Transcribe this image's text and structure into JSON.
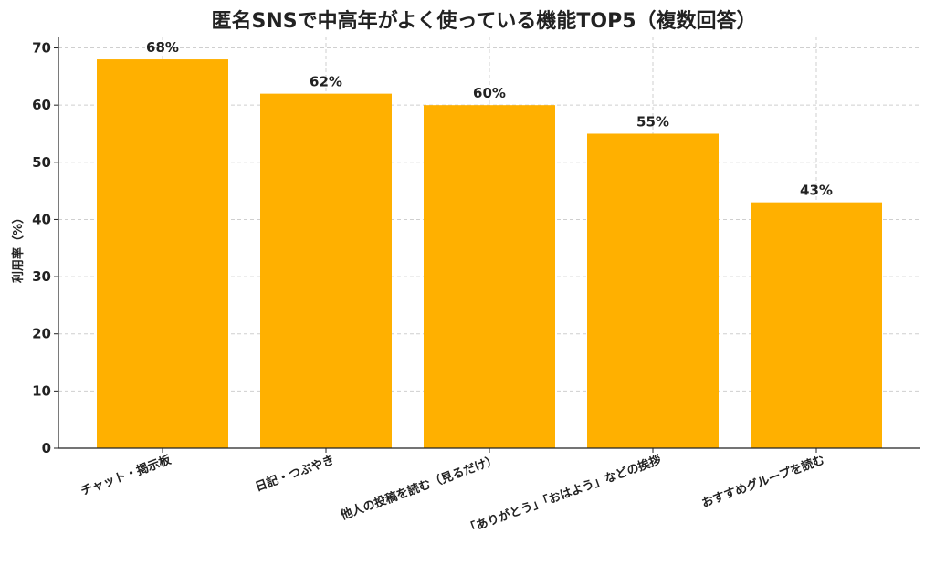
{
  "chart_data": {
    "type": "bar",
    "title": "匿名SNSで中高年がよく使っている機能TOP5（複数回答）",
    "xlabel": "",
    "ylabel": "利用率（%）",
    "categories": [
      "チャット・掲示板",
      "日記・つぶやき",
      "他人の投稿を読む（見るだけ）",
      "「ありがとう」「おはよう」などの挨拶",
      "おすすめグループを読む"
    ],
    "values": [
      68,
      62,
      60,
      55,
      43
    ],
    "data_labels": [
      "68%",
      "62%",
      "60%",
      "55%",
      "43%"
    ],
    "ylim": [
      0,
      72
    ],
    "yticks": [
      0,
      10,
      20,
      30,
      40,
      50,
      60,
      70
    ],
    "grid": true,
    "legend": "none",
    "bar_color": "#FFB000"
  }
}
